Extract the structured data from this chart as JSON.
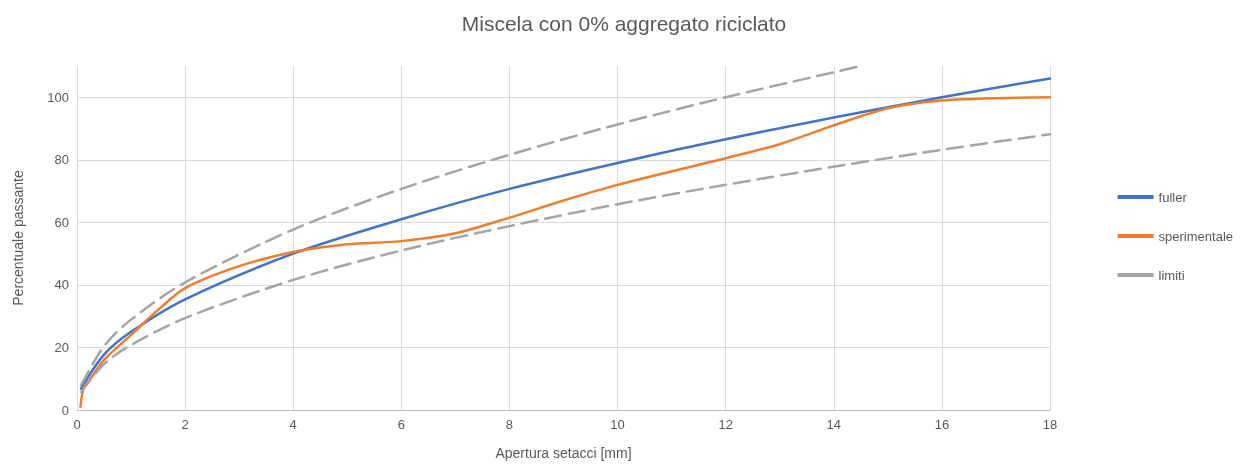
{
  "chart_data": {
    "type": "line",
    "title": "Miscela con 0% aggregato riciclato",
    "xlabel": "Apertura setacci [mm]",
    "ylabel": "Percentuale passante",
    "xlim": [
      0,
      18
    ],
    "xticks": [
      0,
      2,
      4,
      6,
      8,
      10,
      12,
      14,
      16,
      18
    ],
    "ylim": [
      0,
      110
    ],
    "yticks": [
      0,
      20,
      40,
      60,
      80,
      100
    ],
    "grid": true,
    "legend": "right",
    "marker": "none",
    "series": [
      {
        "name": "fuller",
        "color": "#4472c4",
        "line_style": "solid",
        "x": [
          0.075,
          0.5,
          1,
          2,
          4,
          6,
          8,
          10,
          12,
          14,
          16,
          18
        ],
        "values": [
          6.8,
          17.7,
          25,
          35.4,
          50,
          61,
          70.7,
          79,
          86.6,
          93.5,
          100,
          106
        ]
      },
      {
        "name": "sperimentale",
        "color": "#ed7d31",
        "line_style": "solid",
        "x": [
          0.063,
          0.125,
          0.25,
          0.5,
          1,
          1.5,
          2,
          3,
          4,
          5,
          6,
          7,
          8,
          9,
          10,
          12,
          13,
          14,
          15,
          16,
          18
        ],
        "values": [
          1,
          7,
          10,
          16,
          24,
          32,
          39,
          46,
          50.5,
          53,
          54,
          56.5,
          61.5,
          67,
          72,
          80.5,
          85,
          91,
          96.5,
          99,
          100
        ]
      },
      {
        "name": "limiti",
        "color": "#a5a5a5",
        "line_style": "dashed",
        "x": [
          0.075,
          0.5,
          1,
          2,
          4,
          6,
          8,
          10,
          12,
          14,
          14.5
        ],
        "values": [
          7.9,
          20.4,
          28.9,
          40.8,
          57.7,
          70.7,
          81.6,
          91.3,
          100,
          108,
          110
        ]
      },
      {
        "color": "#a5a5a5",
        "line_style": "dashed",
        "x": [
          0.075,
          0.5,
          1,
          2,
          4,
          6,
          8,
          10,
          12,
          14,
          16,
          18
        ],
        "values": [
          5.7,
          14.7,
          20.8,
          29.4,
          41.6,
          51,
          58.8,
          65.8,
          72,
          77.8,
          83.2,
          88.2
        ]
      }
    ]
  }
}
